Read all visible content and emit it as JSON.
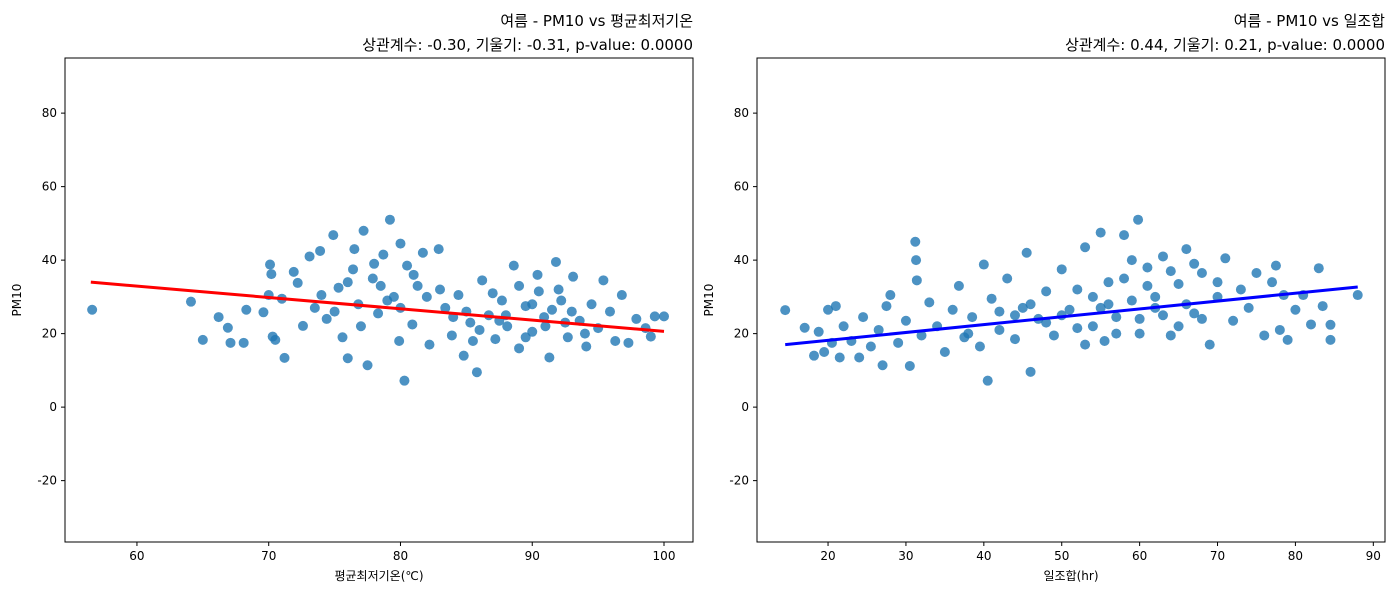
{
  "chart_data": [
    {
      "type": "scatter",
      "title": "여름 - PM10 vs 평균최저기온",
      "subtitle": "상관계수: -0.30, 기울기: -0.31, p-value: 0.0000",
      "x_label": "평균최저기온(℃)",
      "y_label": "PM10",
      "xlim": [
        54.54,
        102.2
      ],
      "ylim": [
        -36.7,
        95
      ],
      "xticks": [
        60,
        70,
        80,
        90,
        100
      ],
      "yticks": [
        -20,
        0,
        20,
        40,
        60,
        80
      ],
      "series": [
        {
          "type": "scatter",
          "color": "#1f77b4",
          "x": [
            56.6,
            64.1,
            65.0,
            66.2,
            66.9,
            67.1,
            68.1,
            68.3,
            69.6,
            70.0,
            70.1,
            70.2,
            70.3,
            70.5,
            71.0,
            71.2,
            71.9,
            72.2,
            72.6,
            73.1,
            73.5,
            73.9,
            74.4,
            74.9,
            75.3,
            75.6,
            76.0,
            76.4,
            76.8,
            77.2,
            77.5,
            77.9,
            78.3,
            78.7,
            79.2,
            79.5,
            79.9,
            80.3,
            80.5,
            80.9,
            81.3,
            81.7,
            82.2,
            82.9,
            83.4,
            83.9,
            84.4,
            84.8,
            85.3,
            85.8,
            86.2,
            86.7,
            87.2,
            87.7,
            88.1,
            88.6,
            89.0,
            89.5,
            90.0,
            90.4,
            90.9,
            91.3,
            91.8,
            92.2,
            92.7,
            93.1,
            93.6,
            94.1,
            94.5,
            95.0,
            95.4,
            95.9,
            96.3,
            96.8,
            97.3,
            97.9,
            98.6,
            99.0,
            99.3,
            100.0,
            74.0,
            75.0,
            76.0,
            77.0,
            78.0,
            79.0,
            80.0,
            81.0,
            82.0,
            76.5,
            78.5,
            80.0,
            85.0,
            86.0,
            87.0,
            88.0,
            89.0,
            90.0,
            91.0,
            92.0,
            93.0,
            94.0,
            89.5,
            91.5,
            87.5,
            85.5,
            92.5,
            84.0,
            83.0,
            90.5
          ],
          "values": [
            26.5,
            28.7,
            18.3,
            24.5,
            21.6,
            17.5,
            17.5,
            26.5,
            25.8,
            30.5,
            38.8,
            36.2,
            19.2,
            18.3,
            29.5,
            13.4,
            36.8,
            33.8,
            22.1,
            41.0,
            27.0,
            42.5,
            24.0,
            46.8,
            32.5,
            19.0,
            13.3,
            37.5,
            28.0,
            48.0,
            11.4,
            35.0,
            25.5,
            41.5,
            51.0,
            30.0,
            18.0,
            7.2,
            38.5,
            22.5,
            33.0,
            42.0,
            17.0,
            43.0,
            27.0,
            19.5,
            30.5,
            14.0,
            23.0,
            9.5,
            34.5,
            25.0,
            18.5,
            29.0,
            22.0,
            38.5,
            16.0,
            27.5,
            20.5,
            36.0,
            24.5,
            13.5,
            39.5,
            29.0,
            19.0,
            35.5,
            23.5,
            16.5,
            28.0,
            21.5,
            34.5,
            26.0,
            18.0,
            30.5,
            17.5,
            24.0,
            21.5,
            19.2,
            24.7,
            24.7,
            30.5,
            26.0,
            34.0,
            22.0,
            39.0,
            29.0,
            27.0,
            36.0,
            30.0,
            43.0,
            33.0,
            44.5,
            26.0,
            21.0,
            31.0,
            25.0,
            33.0,
            28.0,
            22.0,
            32.0,
            26.0,
            20.0,
            19.0,
            26.5,
            23.5,
            18.0,
            23.0,
            24.5,
            32.0,
            31.5
          ]
        },
        {
          "type": "line",
          "color": "#ff0000",
          "x": [
            56.5,
            100
          ],
          "values": [
            34,
            20.6
          ]
        }
      ]
    },
    {
      "type": "scatter",
      "title": "여름 - PM10 vs 일조합",
      "subtitle": "상관계수: 0.44, 기울기: 0.21, p-value: 0.0000",
      "x_label": "일조합(hr)",
      "y_label": "PM10",
      "xlim": [
        10.88,
        91.5
      ],
      "ylim": [
        -36.7,
        95
      ],
      "xticks": [
        20,
        30,
        40,
        50,
        60,
        70,
        80,
        90
      ],
      "yticks": [
        -20,
        0,
        20,
        40,
        60,
        80
      ],
      "series": [
        {
          "type": "scatter",
          "color": "#1f77b4",
          "x": [
            14.5,
            17.0,
            18.2,
            18.8,
            19.5,
            20.0,
            20.5,
            21.0,
            21.5,
            22.0,
            23.0,
            24.0,
            24.5,
            25.5,
            26.5,
            27.0,
            27.5,
            28.0,
            29.0,
            30.0,
            30.5,
            31.2,
            31.3,
            31.4,
            32.0,
            33.0,
            34.0,
            35.0,
            36.0,
            36.8,
            37.5,
            38.5,
            39.5,
            40.0,
            40.5,
            41.0,
            42.0,
            43.0,
            44.0,
            45.0,
            45.5,
            46.0,
            47.0,
            48.0,
            49.0,
            50.0,
            51.0,
            52.0,
            53.0,
            54.0,
            55.0,
            55.5,
            56.0,
            57.0,
            58.0,
            59.0,
            59.8,
            60.0,
            61.0,
            62.0,
            63.0,
            64.0,
            65.0,
            66.0,
            67.0,
            68.0,
            69.0,
            70.0,
            71.0,
            72.0,
            73.0,
            74.0,
            75.0,
            76.0,
            77.0,
            77.5,
            78.0,
            78.5,
            79.0,
            80.0,
            81.0,
            82.0,
            83.0,
            83.5,
            84.5,
            84.5,
            88.0,
            50,
            52,
            54,
            56,
            58,
            60,
            62,
            64,
            66,
            68,
            70,
            55,
            57,
            61,
            63,
            48,
            46,
            44,
            42,
            38,
            65,
            67,
            59,
            53
          ],
          "values": [
            26.4,
            21.6,
            14.0,
            20.5,
            15.0,
            26.5,
            17.5,
            27.5,
            13.5,
            22.0,
            18.0,
            13.5,
            24.5,
            16.5,
            21.0,
            11.4,
            27.5,
            30.5,
            17.5,
            23.5,
            11.2,
            45.0,
            40.0,
            34.5,
            19.5,
            28.5,
            22.0,
            15.0,
            26.5,
            33.0,
            19.0,
            24.5,
            16.5,
            38.8,
            7.2,
            29.5,
            21.0,
            35.0,
            18.5,
            27.0,
            42.0,
            9.6,
            24.0,
            31.5,
            19.5,
            37.5,
            26.5,
            21.5,
            43.5,
            30.0,
            47.5,
            18.0,
            34.0,
            24.5,
            46.8,
            29.0,
            51.0,
            20.0,
            38.0,
            27.0,
            41.0,
            19.5,
            33.5,
            43.0,
            25.5,
            36.5,
            17.0,
            30.0,
            40.5,
            23.5,
            32.0,
            27.0,
            36.5,
            19.5,
            34.0,
            38.5,
            21.0,
            30.5,
            18.3,
            26.5,
            30.5,
            22.5,
            37.8,
            27.5,
            18.3,
            22.4,
            30.5,
            25,
            32,
            22,
            28,
            35,
            24,
            30,
            37,
            28,
            24,
            34,
            27,
            20,
            33,
            25,
            23,
            28,
            25,
            26,
            20,
            22,
            39,
            40,
            17
          ]
        },
        {
          "type": "line",
          "color": "#0000ff",
          "x": [
            14.5,
            88
          ],
          "values": [
            17,
            32.7
          ]
        }
      ]
    }
  ]
}
